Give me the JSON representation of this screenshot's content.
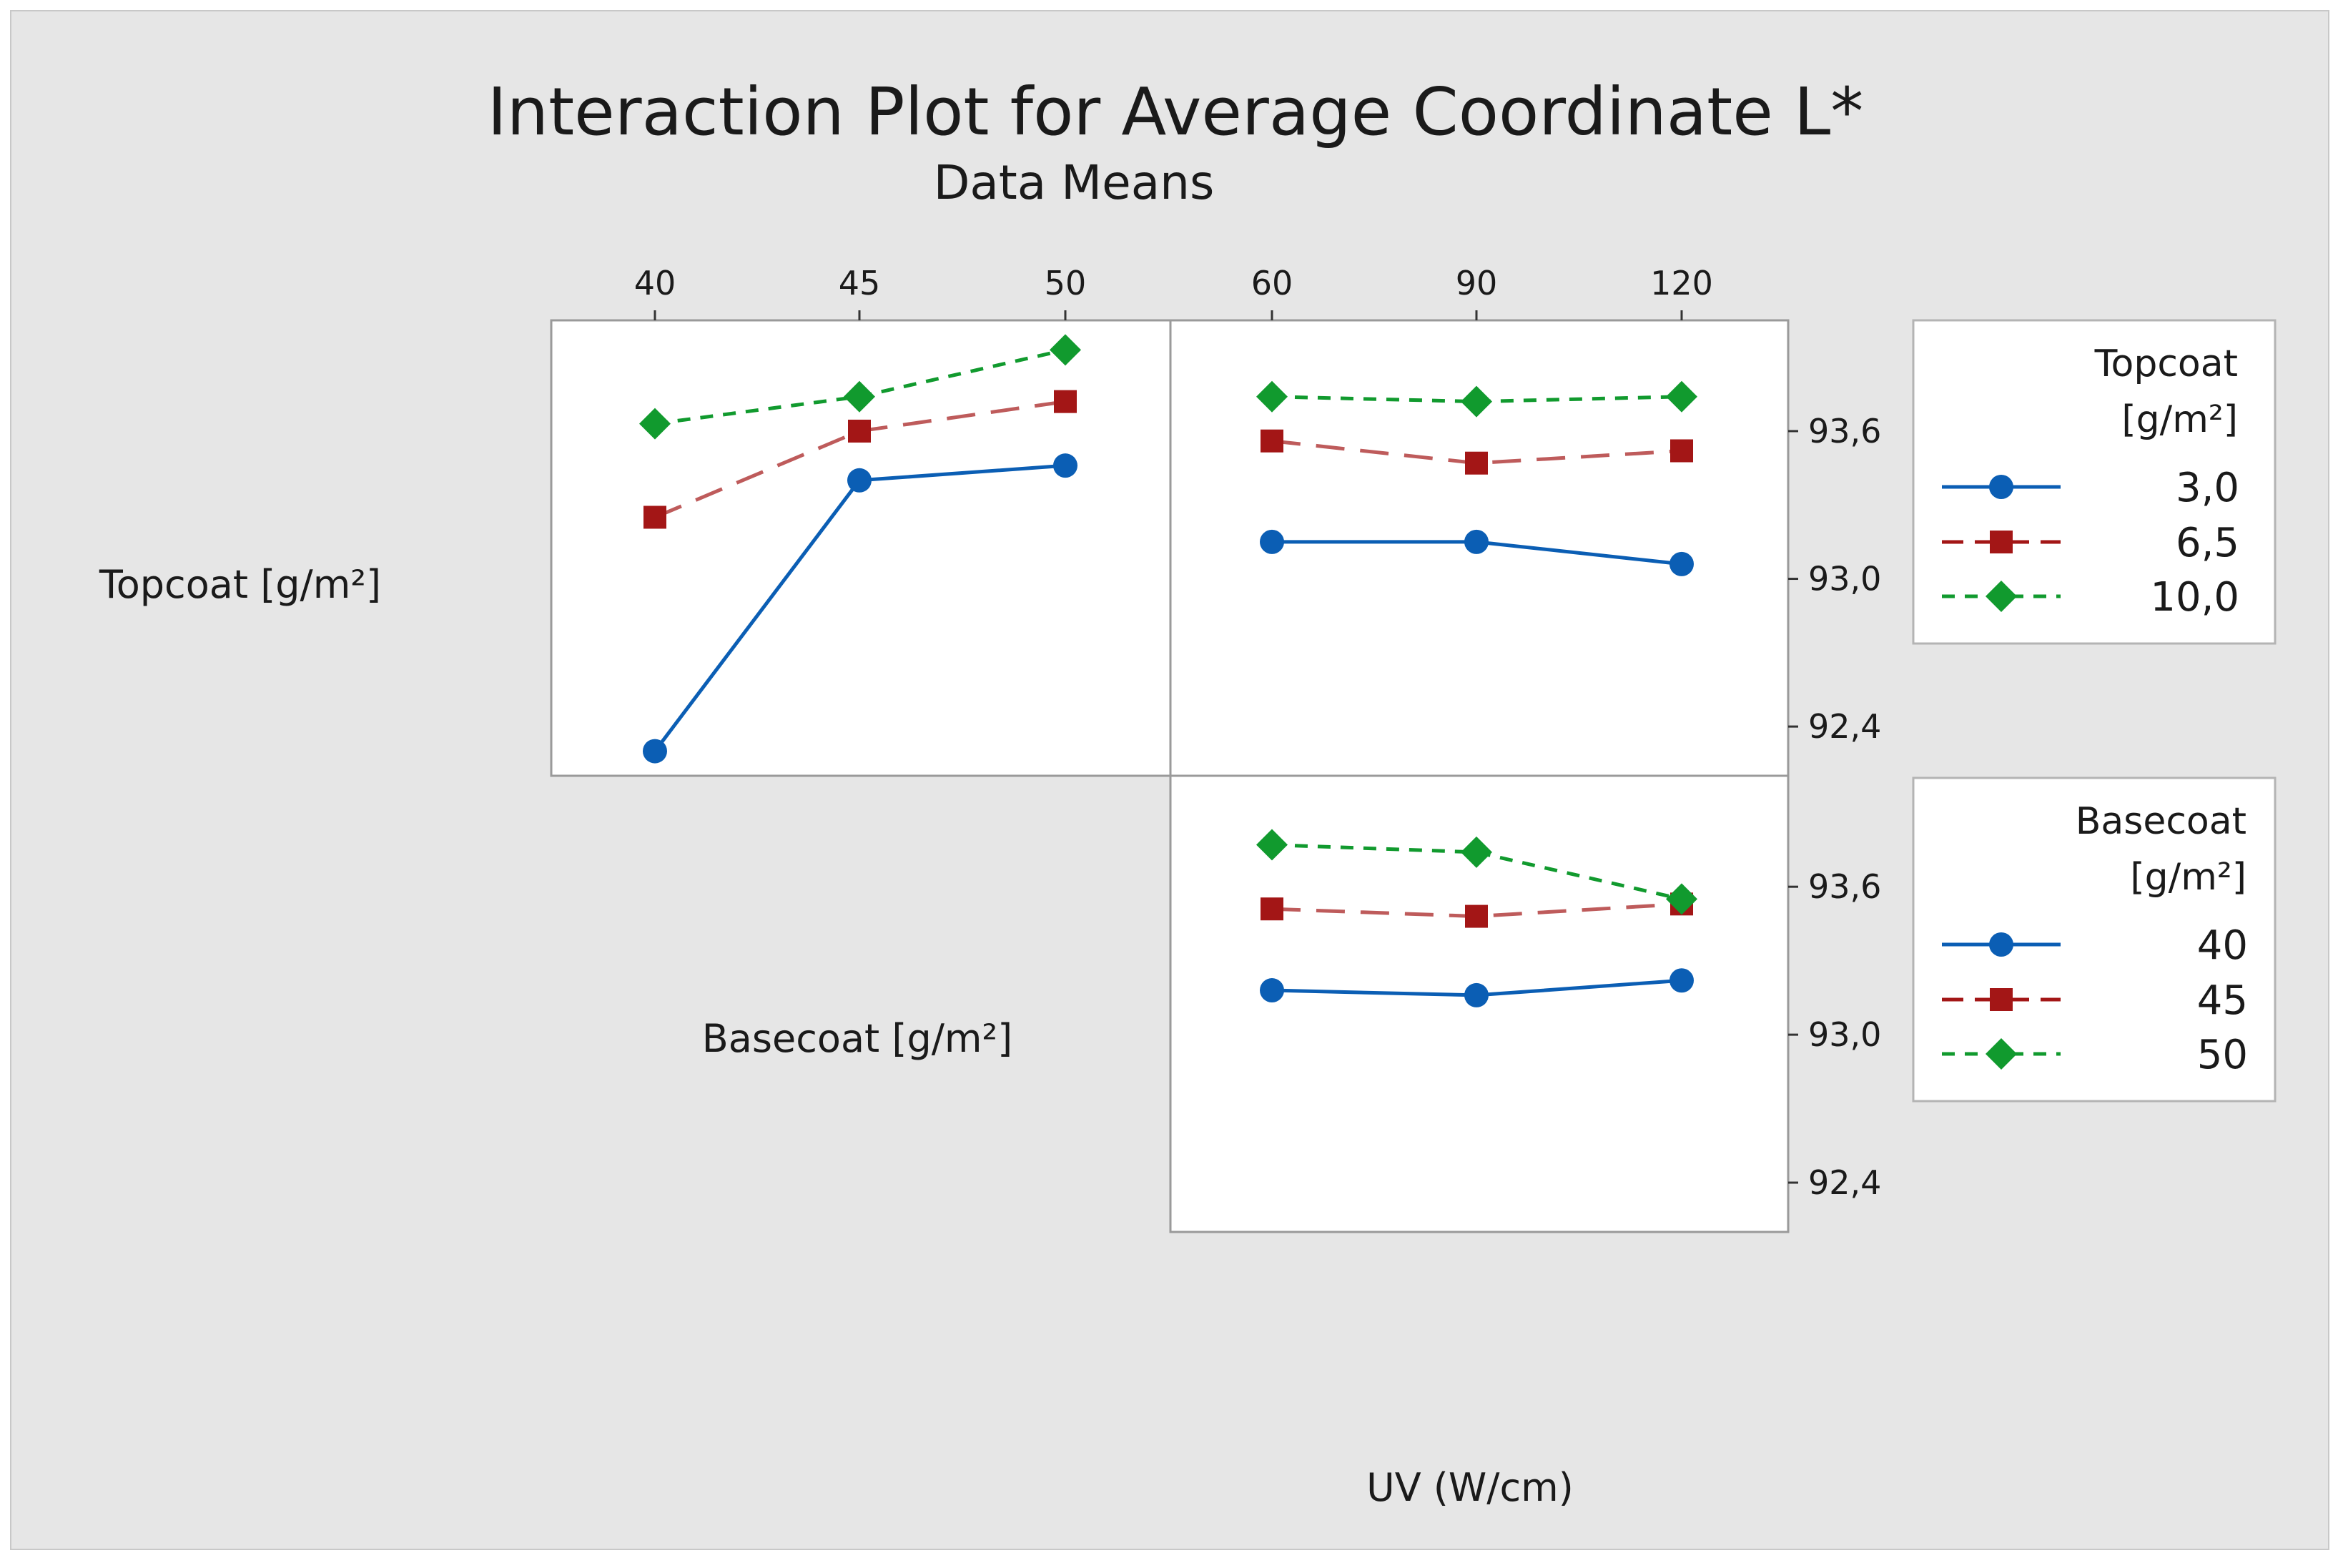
{
  "chart_data": {
    "type": "line",
    "title": "Interaction Plot for Average Coordinate L*",
    "subtitle": "Data Means",
    "xlabel": "UV (W/cm)",
    "factors": [
      "Topcoat [g/m²]",
      "Basecoat [g/m²]",
      "UV (W/cm)"
    ],
    "y_ticks": [
      "93,6",
      "93,0",
      "92,4"
    ],
    "y_tick_values": [
      93.6,
      93.0,
      92.4
    ],
    "colors": {
      "s1": "#0b5eb4",
      "s2": "#a31616",
      "s3": "#119a2e"
    },
    "panels": [
      {
        "id": "topcoat-by-basecoat",
        "row_factor": "Topcoat [g/m²]",
        "x_factor": "Basecoat [g/m²]",
        "x_ticks": [
          "40",
          "45",
          "50"
        ],
        "ylim": [
          92.2,
          94.05
        ],
        "series": [
          {
            "name": "3,0",
            "values": [
              92.3,
              93.4,
              93.46
            ]
          },
          {
            "name": "6,5",
            "values": [
              93.25,
              93.6,
              93.72
            ]
          },
          {
            "name": "10,0",
            "values": [
              93.63,
              93.74,
              93.93
            ]
          }
        ]
      },
      {
        "id": "topcoat-by-uv",
        "row_factor": "Topcoat [g/m²]",
        "x_factor": "UV (W/cm)",
        "x_ticks": [
          "60",
          "90",
          "120"
        ],
        "ylim": [
          92.2,
          94.05
        ],
        "series": [
          {
            "name": "3,0",
            "values": [
              93.15,
              93.15,
              93.06
            ]
          },
          {
            "name": "6,5",
            "values": [
              93.56,
              93.47,
              93.52
            ]
          },
          {
            "name": "10,0",
            "values": [
              93.74,
              93.72,
              93.74
            ]
          }
        ]
      },
      {
        "id": "basecoat-by-uv",
        "row_factor": "Basecoat [g/m²]",
        "x_factor": "UV (W/cm)",
        "x_ticks": [
          "60",
          "90",
          "120"
        ],
        "ylim": [
          92.2,
          94.05
        ],
        "series": [
          {
            "name": "40",
            "values": [
              93.18,
              93.16,
              93.22
            ]
          },
          {
            "name": "45",
            "values": [
              93.51,
              93.48,
              93.53
            ]
          },
          {
            "name": "50",
            "values": [
              93.77,
              93.74,
              93.55
            ]
          }
        ]
      }
    ],
    "legends": [
      {
        "title_lines": [
          "Topcoat",
          "[g/m²]"
        ],
        "entries": [
          "3,0",
          "6,5",
          "10,0"
        ]
      },
      {
        "title_lines": [
          "Basecoat",
          "[g/m²]"
        ],
        "entries": [
          "40",
          "45",
          "50"
        ]
      }
    ]
  }
}
